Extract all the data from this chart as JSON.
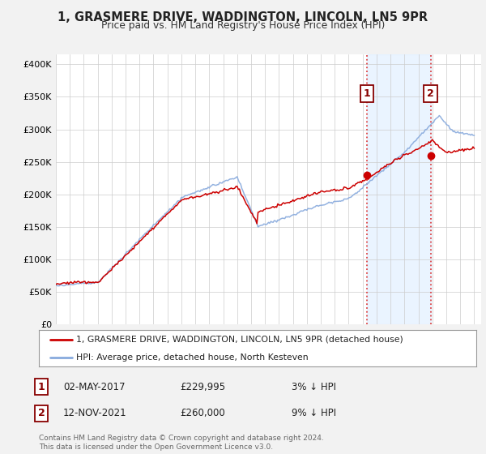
{
  "title": "1, GRASMERE DRIVE, WADDINGTON, LINCOLN, LN5 9PR",
  "subtitle": "Price paid vs. HM Land Registry's House Price Index (HPI)",
  "ylabel_ticks": [
    "£0",
    "£50K",
    "£100K",
    "£150K",
    "£200K",
    "£250K",
    "£300K",
    "£350K",
    "£400K"
  ],
  "ytick_values": [
    0,
    50000,
    100000,
    150000,
    200000,
    250000,
    300000,
    350000,
    400000
  ],
  "ylim": [
    0,
    415000
  ],
  "xlim_start": 1995,
  "xlim_end": 2025.5,
  "sale1_date": 2017.33,
  "sale1_price": 229995,
  "sale1_label": "1",
  "sale1_text": "02-MAY-2017          £229,995          3% ↓ HPI",
  "sale2_date": 2021.87,
  "sale2_price": 260000,
  "sale2_label": "2",
  "sale2_text": "12-NOV-2021          £260,000          9% ↓ HPI",
  "line_color_actual": "#cc0000",
  "line_color_hpi": "#88aadd",
  "vline_color": "#dd4444",
  "legend_label_actual": "1, GRASMERE DRIVE, WADDINGTON, LINCOLN, LN5 9PR (detached house)",
  "legend_label_hpi": "HPI: Average price, detached house, North Kesteven",
  "footnote": "Contains HM Land Registry data © Crown copyright and database right 2024.\nThis data is licensed under the Open Government Licence v3.0.",
  "background_color": "#f2f2f2",
  "plot_bg_color": "#ffffff",
  "shade_color": "#ddeeff"
}
